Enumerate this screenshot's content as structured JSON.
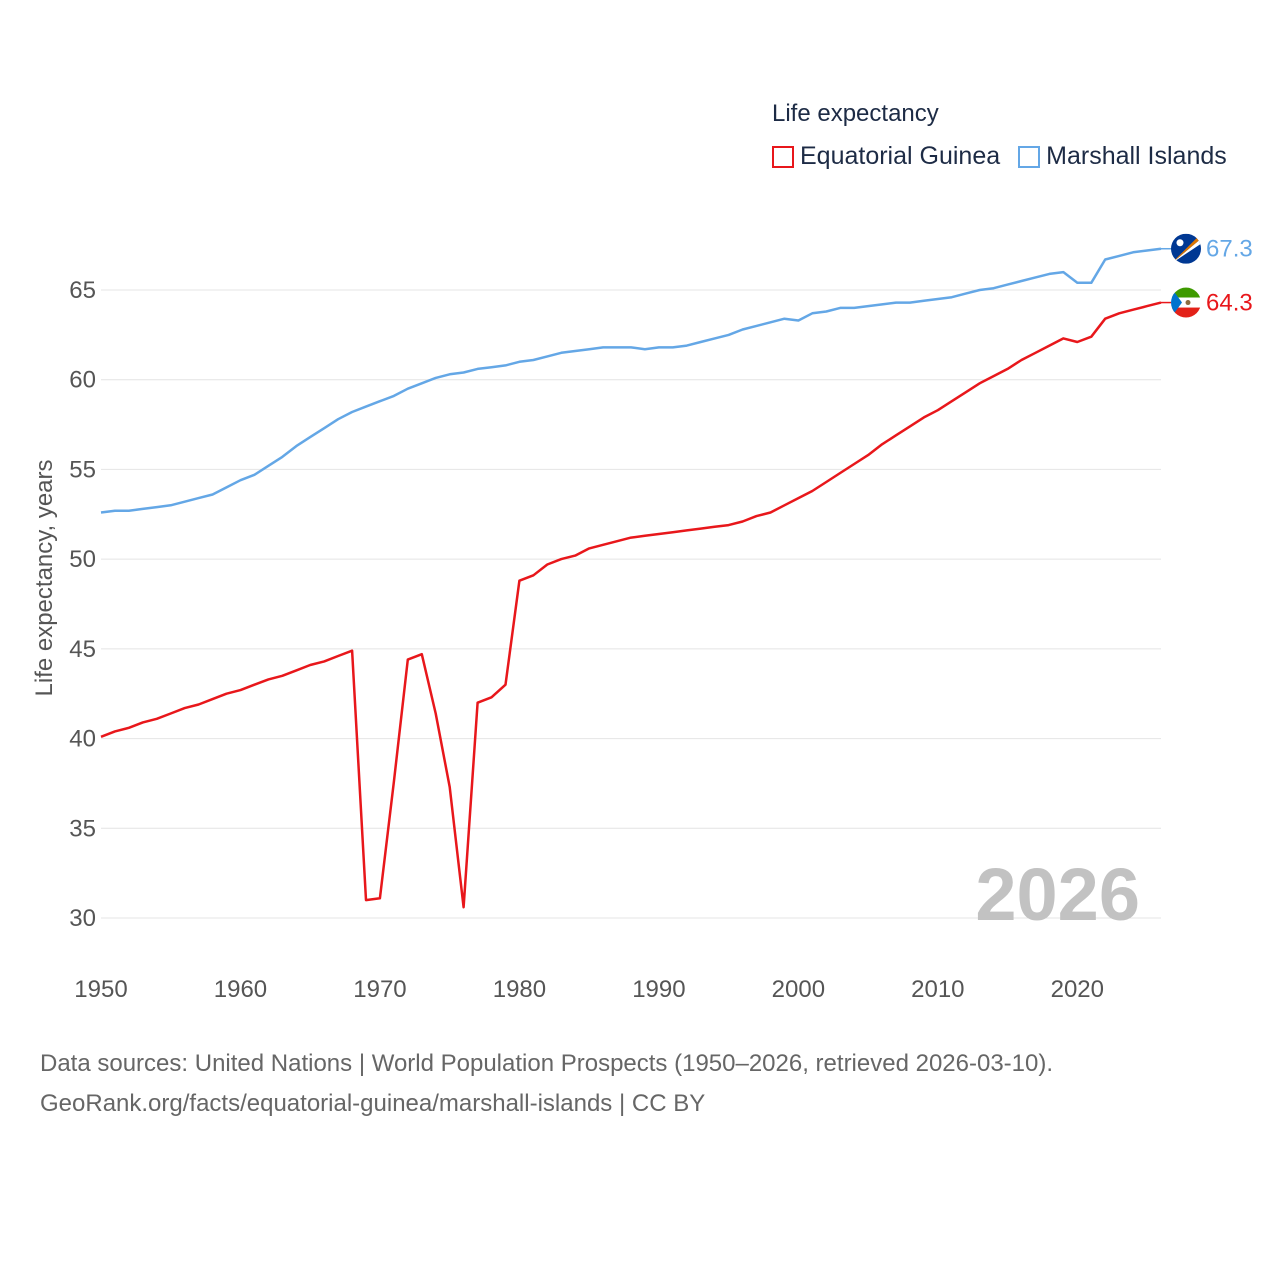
{
  "legend": {
    "title": "Life expectancy",
    "items": [
      {
        "label": "Equatorial Guinea",
        "color": "#e8171b"
      },
      {
        "label": "Marshall Islands",
        "color": "#64a7e6"
      }
    ]
  },
  "footer": {
    "line1": "Data sources: United Nations | World Population Prospects (1950–2026, retrieved 2026-03-10).",
    "line2": "GeoRank.org/facts/equatorial-guinea/marshall-islands | CC BY"
  },
  "chart_data": {
    "type": "line",
    "title": "Life expectancy",
    "xlabel": "",
    "ylabel": "Life expectancy, years",
    "xlim": [
      1950,
      2026
    ],
    "ylim": [
      27.5,
      69
    ],
    "xticks": [
      1950,
      1960,
      1970,
      1980,
      1990,
      2000,
      2010,
      2020
    ],
    "yticks": [
      30,
      35,
      40,
      45,
      50,
      55,
      60,
      65
    ],
    "watermark_year": "2026",
    "grid": true,
    "legend_position": "top-right",
    "series": [
      {
        "name": "Equatorial Guinea",
        "color": "#e8171b",
        "end_label": "64.3",
        "flag": "equatorial-guinea-flag",
        "x": [
          1950,
          1951,
          1952,
          1953,
          1954,
          1955,
          1956,
          1957,
          1958,
          1959,
          1960,
          1961,
          1962,
          1963,
          1964,
          1965,
          1966,
          1967,
          1968,
          1969,
          1970,
          1971,
          1972,
          1973,
          1974,
          1975,
          1976,
          1977,
          1978,
          1979,
          1980,
          1981,
          1982,
          1983,
          1984,
          1985,
          1986,
          1987,
          1988,
          1989,
          1990,
          1991,
          1992,
          1993,
          1994,
          1995,
          1996,
          1997,
          1998,
          1999,
          2000,
          2001,
          2002,
          2003,
          2004,
          2005,
          2006,
          2007,
          2008,
          2009,
          2010,
          2011,
          2012,
          2013,
          2014,
          2015,
          2016,
          2017,
          2018,
          2019,
          2020,
          2021,
          2022,
          2023,
          2024,
          2025,
          2026
        ],
        "values": [
          40.1,
          40.4,
          40.6,
          40.9,
          41.1,
          41.4,
          41.7,
          41.9,
          42.2,
          42.5,
          42.7,
          43.0,
          43.3,
          43.5,
          43.8,
          44.1,
          44.3,
          44.6,
          44.9,
          31.0,
          31.1,
          37.6,
          44.4,
          44.7,
          41.4,
          37.3,
          30.6,
          42.0,
          42.3,
          43.0,
          48.8,
          49.1,
          49.7,
          50.0,
          50.2,
          50.6,
          50.8,
          51.0,
          51.2,
          51.3,
          51.4,
          51.5,
          51.6,
          51.7,
          51.8,
          51.9,
          52.1,
          52.4,
          52.6,
          53.0,
          53.4,
          53.8,
          54.3,
          54.8,
          55.3,
          55.8,
          56.4,
          56.9,
          57.4,
          57.9,
          58.3,
          58.8,
          59.3,
          59.8,
          60.2,
          60.6,
          61.1,
          61.5,
          61.9,
          62.3,
          62.1,
          62.4,
          63.4,
          63.7,
          63.9,
          64.1,
          64.3
        ]
      },
      {
        "name": "Marshall Islands",
        "color": "#64a7e6",
        "end_label": "67.3",
        "flag": "marshall-islands-flag",
        "x": [
          1950,
          1951,
          1952,
          1953,
          1954,
          1955,
          1956,
          1957,
          1958,
          1959,
          1960,
          1961,
          1962,
          1963,
          1964,
          1965,
          1966,
          1967,
          1968,
          1969,
          1970,
          1971,
          1972,
          1973,
          1974,
          1975,
          1976,
          1977,
          1978,
          1979,
          1980,
          1981,
          1982,
          1983,
          1984,
          1985,
          1986,
          1987,
          1988,
          1989,
          1990,
          1991,
          1992,
          1993,
          1994,
          1995,
          1996,
          1997,
          1998,
          1999,
          2000,
          2001,
          2002,
          2003,
          2004,
          2005,
          2006,
          2007,
          2008,
          2009,
          2010,
          2011,
          2012,
          2013,
          2014,
          2015,
          2016,
          2017,
          2018,
          2019,
          2020,
          2021,
          2022,
          2023,
          2024,
          2025,
          2026
        ],
        "values": [
          52.6,
          52.7,
          52.7,
          52.8,
          52.9,
          53.0,
          53.2,
          53.4,
          53.6,
          54.0,
          54.4,
          54.7,
          55.2,
          55.7,
          56.3,
          56.8,
          57.3,
          57.8,
          58.2,
          58.5,
          58.8,
          59.1,
          59.5,
          59.8,
          60.1,
          60.3,
          60.4,
          60.6,
          60.7,
          60.8,
          61.0,
          61.1,
          61.3,
          61.5,
          61.6,
          61.7,
          61.8,
          61.8,
          61.8,
          61.7,
          61.8,
          61.8,
          61.9,
          62.1,
          62.3,
          62.5,
          62.8,
          63.0,
          63.2,
          63.4,
          63.3,
          63.7,
          63.8,
          64.0,
          64.0,
          64.1,
          64.2,
          64.3,
          64.3,
          64.4,
          64.5,
          64.6,
          64.8,
          65.0,
          65.1,
          65.3,
          65.5,
          65.7,
          65.9,
          66.0,
          65.4,
          65.4,
          66.7,
          66.9,
          67.1,
          67.2,
          67.3
        ]
      }
    ]
  }
}
